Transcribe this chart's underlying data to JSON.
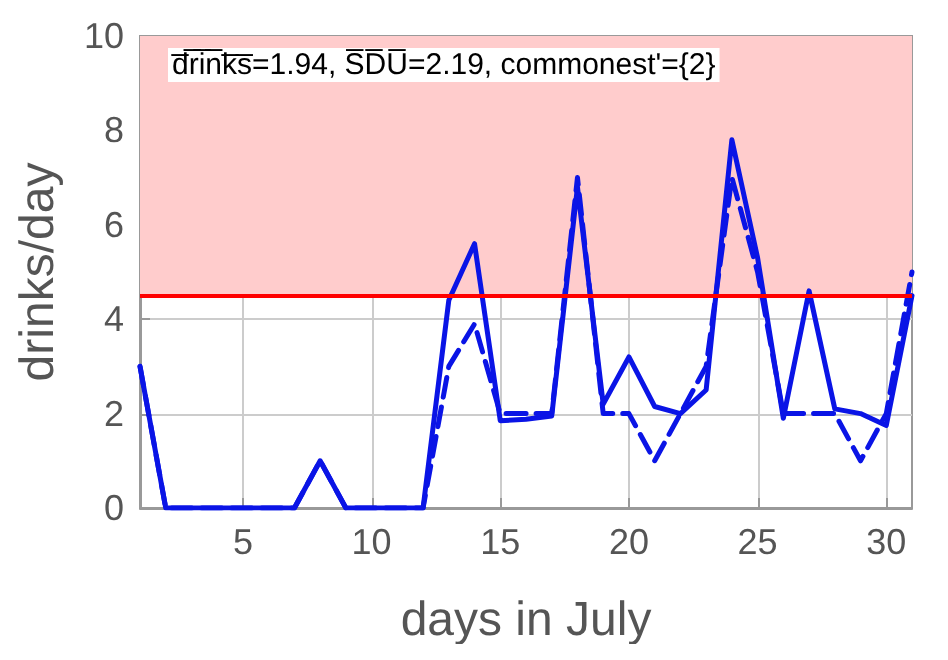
{
  "chart_data": {
    "type": "line",
    "xlabel": "days in July",
    "ylabel": "drinks/day",
    "x": [
      1,
      2,
      3,
      4,
      5,
      6,
      7,
      8,
      9,
      10,
      11,
      12,
      13,
      14,
      15,
      16,
      17,
      18,
      19,
      20,
      21,
      22,
      23,
      24,
      25,
      26,
      27,
      28,
      29,
      30,
      31
    ],
    "series": [
      {
        "color": "#0a14e6",
        "line_style": "solid",
        "values": [
          3,
          0,
          0,
          0,
          0,
          0,
          0,
          1,
          0,
          0,
          0,
          0,
          4.4,
          5.6,
          1.85,
          1.88,
          1.95,
          6.8,
          2.2,
          3.2,
          2.15,
          2,
          2.5,
          7.8,
          5.3,
          1.9,
          4.6,
          2.1,
          2,
          1.75,
          4.5
        ]
      },
      {
        "color": "#0a14e6",
        "line_style": "dashed",
        "values": [
          3,
          0,
          0,
          0,
          0,
          0,
          0,
          1,
          0,
          0,
          0,
          0,
          3,
          3.9,
          2,
          2,
          2,
          7,
          2,
          2,
          1,
          2,
          3,
          7,
          5,
          2,
          2,
          2,
          1,
          2,
          5
        ]
      }
    ],
    "xlim": [
      1,
      31
    ],
    "xticks": [
      5,
      10,
      15,
      20,
      25,
      30
    ],
    "ylim": [
      0,
      10
    ],
    "yticks": [
      0,
      2,
      4,
      6,
      8,
      10
    ],
    "grid": true,
    "marker": "none",
    "ref_lines": [
      {
        "axis": "y",
        "value": 4.5,
        "color": "#ff0000"
      }
    ],
    "bands": [
      {
        "axis": "y",
        "from": 4.5,
        "to": 10,
        "color": "#ffcccc"
      }
    ],
    "annotations": [
      "d̅r̅i̅n̅k̅s̅=1.94, S̅D̅U̅=2.19, commonest'={2}"
    ]
  }
}
